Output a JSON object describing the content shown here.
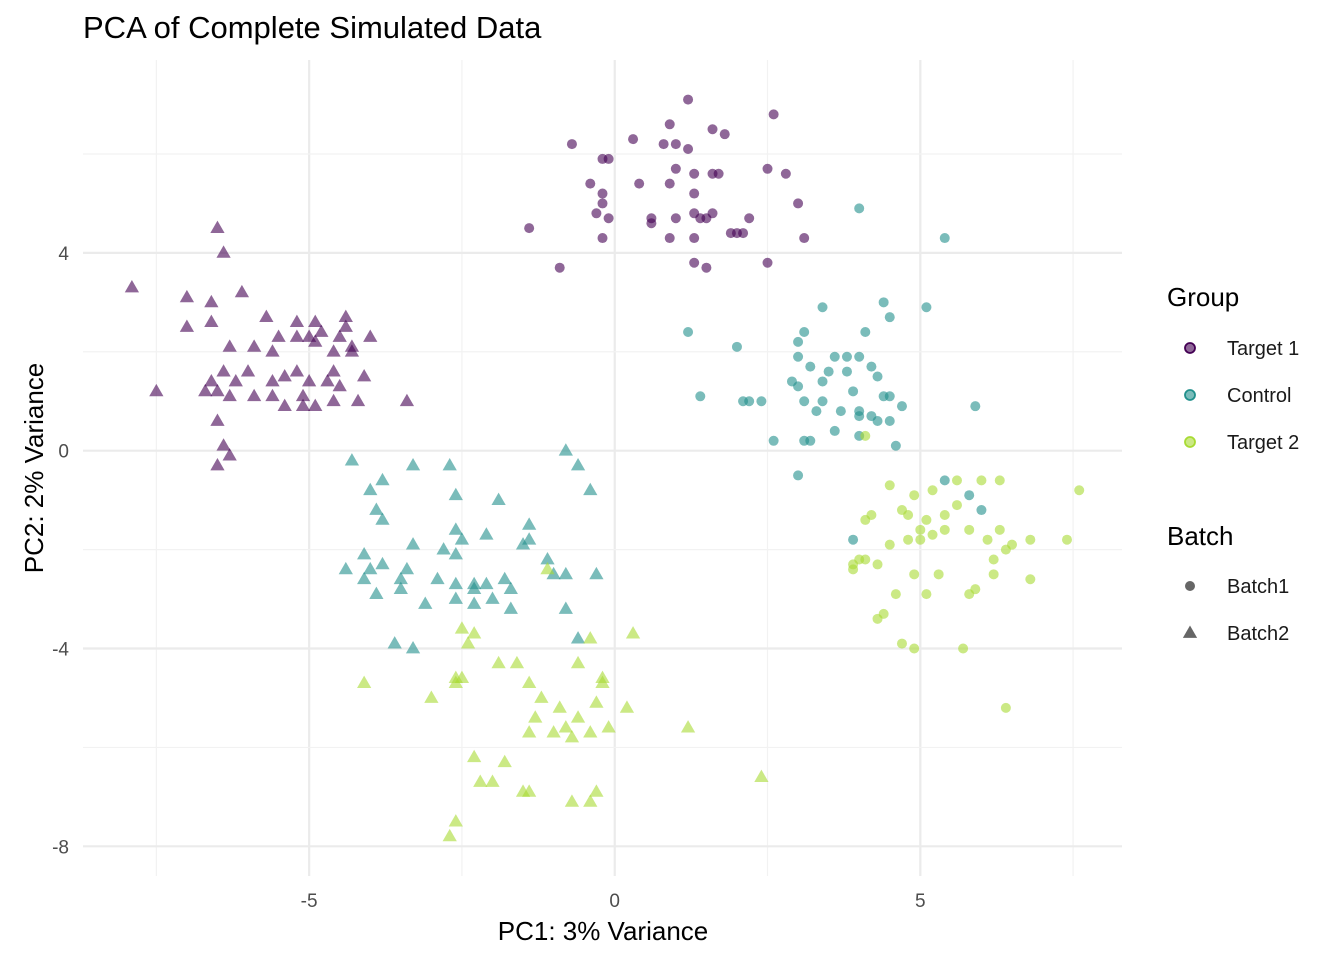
{
  "chart_data": {
    "type": "scatter",
    "title": "PCA of Complete Simulated Data",
    "xlabel": "PC1: 3% Variance",
    "ylabel": "PC2: 2% Variance",
    "xlim": [
      -8.7,
      8.3
    ],
    "ylim": [
      -8.6,
      7.9
    ],
    "x_ticks": [
      -5,
      0,
      5
    ],
    "x_tick_labels": [
      "-5",
      "0",
      "5"
    ],
    "y_ticks": [
      -8,
      -4,
      0,
      4
    ],
    "y_tick_labels": [
      "-8",
      "-4",
      "0",
      "4"
    ],
    "grid": true,
    "legend_position": "right",
    "legend": {
      "color_title": "Group",
      "shape_title": "Batch",
      "groups": [
        {
          "name": "Target 1",
          "color": "#440154"
        },
        {
          "name": "Control",
          "color": "#21908C"
        },
        {
          "name": "Target 2",
          "color": "#A8DB34"
        }
      ],
      "batches": [
        {
          "name": "Batch1",
          "shape": "circle"
        },
        {
          "name": "Batch2",
          "shape": "triangle"
        }
      ]
    },
    "series": [
      {
        "group": "Target 1",
        "batch": "Batch1",
        "points": [
          [
            1.2,
            7.1
          ],
          [
            2.6,
            6.8
          ],
          [
            -0.7,
            6.2
          ],
          [
            0.3,
            6.3
          ],
          [
            0.9,
            6.6
          ],
          [
            1.6,
            6.5
          ],
          [
            1.8,
            6.4
          ],
          [
            1.0,
            6.2
          ],
          [
            0.8,
            6.2
          ],
          [
            1.2,
            6.1
          ],
          [
            -0.2,
            5.9
          ],
          [
            -0.1,
            5.9
          ],
          [
            1.0,
            5.7
          ],
          [
            1.3,
            5.6
          ],
          [
            1.6,
            5.6
          ],
          [
            1.7,
            5.6
          ],
          [
            2.5,
            5.7
          ],
          [
            2.8,
            5.6
          ],
          [
            -0.4,
            5.4
          ],
          [
            0.4,
            5.4
          ],
          [
            0.9,
            5.4
          ],
          [
            -0.2,
            5.2
          ],
          [
            -0.2,
            5.0
          ],
          [
            1.3,
            5.2
          ],
          [
            3.0,
            5.0
          ],
          [
            -0.3,
            4.8
          ],
          [
            0.6,
            4.7
          ],
          [
            1.0,
            4.7
          ],
          [
            1.3,
            4.8
          ],
          [
            1.5,
            4.7
          ],
          [
            1.6,
            4.8
          ],
          [
            2.2,
            4.7
          ],
          [
            -0.1,
            4.7
          ],
          [
            0.6,
            4.6
          ],
          [
            1.4,
            4.7
          ],
          [
            2.0,
            4.4
          ],
          [
            2.1,
            4.4
          ],
          [
            1.9,
            4.4
          ],
          [
            -1.4,
            4.5
          ],
          [
            -0.2,
            4.3
          ],
          [
            0.9,
            4.3
          ],
          [
            1.3,
            4.3
          ],
          [
            3.1,
            4.3
          ],
          [
            1.3,
            3.8
          ],
          [
            1.5,
            3.7
          ],
          [
            2.5,
            3.8
          ],
          [
            -0.9,
            3.7
          ]
        ]
      },
      {
        "group": "Target 1",
        "batch": "Batch2",
        "points": [
          [
            -6.5,
            4.5
          ],
          [
            -6.4,
            4.0
          ],
          [
            -7.9,
            3.3
          ],
          [
            -7.0,
            3.1
          ],
          [
            -6.1,
            3.2
          ],
          [
            -6.6,
            3.0
          ],
          [
            -7.0,
            2.5
          ],
          [
            -6.6,
            2.6
          ],
          [
            -5.7,
            2.7
          ],
          [
            -5.2,
            2.6
          ],
          [
            -4.9,
            2.6
          ],
          [
            -4.4,
            2.7
          ],
          [
            -6.3,
            2.1
          ],
          [
            -5.9,
            2.1
          ],
          [
            -5.5,
            2.3
          ],
          [
            -5.2,
            2.3
          ],
          [
            -5.0,
            2.3
          ],
          [
            -4.8,
            2.4
          ],
          [
            -4.5,
            2.3
          ],
          [
            -4.4,
            2.5
          ],
          [
            -4.0,
            2.3
          ],
          [
            -5.6,
            2.0
          ],
          [
            -4.9,
            2.2
          ],
          [
            -4.6,
            2.0
          ],
          [
            -4.3,
            2.1
          ],
          [
            -4.3,
            2.0
          ],
          [
            -6.4,
            1.6
          ],
          [
            -6.0,
            1.6
          ],
          [
            -5.2,
            1.6
          ],
          [
            -4.6,
            1.6
          ],
          [
            -6.6,
            1.4
          ],
          [
            -6.2,
            1.4
          ],
          [
            -5.6,
            1.4
          ],
          [
            -5.4,
            1.5
          ],
          [
            -5.0,
            1.4
          ],
          [
            -4.7,
            1.4
          ],
          [
            -4.5,
            1.3
          ],
          [
            -4.1,
            1.5
          ],
          [
            -6.7,
            1.2
          ],
          [
            -6.5,
            1.2
          ],
          [
            -6.3,
            1.1
          ],
          [
            -5.9,
            1.1
          ],
          [
            -5.6,
            1.1
          ],
          [
            -5.4,
            0.9
          ],
          [
            -5.1,
            0.9
          ],
          [
            -4.9,
            0.9
          ],
          [
            -5.1,
            1.1
          ],
          [
            -4.6,
            1.0
          ],
          [
            -4.2,
            1.0
          ],
          [
            -3.4,
            1.0
          ],
          [
            -7.5,
            1.2
          ],
          [
            -6.5,
            0.6
          ],
          [
            -6.4,
            0.1
          ],
          [
            -6.5,
            -0.3
          ],
          [
            -6.3,
            -0.1
          ]
        ]
      },
      {
        "group": "Control",
        "batch": "Batch1",
        "points": [
          [
            4.0,
            4.9
          ],
          [
            5.4,
            4.3
          ],
          [
            1.2,
            2.4
          ],
          [
            3.4,
            2.9
          ],
          [
            4.4,
            3.0
          ],
          [
            5.1,
            2.9
          ],
          [
            4.5,
            2.7
          ],
          [
            3.1,
            2.4
          ],
          [
            3.0,
            2.2
          ],
          [
            4.1,
            2.4
          ],
          [
            2.0,
            2.1
          ],
          [
            3.6,
            1.9
          ],
          [
            3.8,
            1.9
          ],
          [
            3.0,
            1.9
          ],
          [
            4.0,
            1.9
          ],
          [
            4.2,
            1.7
          ],
          [
            3.2,
            1.7
          ],
          [
            3.5,
            1.6
          ],
          [
            3.8,
            1.6
          ],
          [
            4.3,
            1.5
          ],
          [
            2.9,
            1.4
          ],
          [
            3.4,
            1.4
          ],
          [
            3.0,
            1.3
          ],
          [
            3.9,
            1.2
          ],
          [
            1.4,
            1.1
          ],
          [
            2.2,
            1.0
          ],
          [
            2.1,
            1.0
          ],
          [
            2.4,
            1.0
          ],
          [
            3.1,
            1.0
          ],
          [
            3.4,
            1.0
          ],
          [
            4.4,
            1.1
          ],
          [
            4.5,
            1.1
          ],
          [
            3.3,
            0.8
          ],
          [
            3.7,
            0.8
          ],
          [
            4.0,
            0.8
          ],
          [
            4.0,
            0.7
          ],
          [
            4.2,
            0.7
          ],
          [
            4.3,
            0.6
          ],
          [
            4.5,
            0.6
          ],
          [
            4.7,
            0.9
          ],
          [
            5.9,
            0.9
          ],
          [
            2.6,
            0.2
          ],
          [
            3.1,
            0.2
          ],
          [
            3.2,
            0.2
          ],
          [
            3.6,
            0.4
          ],
          [
            4.0,
            0.3
          ],
          [
            4.6,
            0.1
          ],
          [
            3.0,
            -0.5
          ],
          [
            5.4,
            -0.6
          ],
          [
            5.8,
            -0.9
          ],
          [
            6.0,
            -1.2
          ],
          [
            3.9,
            -1.8
          ]
        ]
      },
      {
        "group": "Control",
        "batch": "Batch2",
        "points": [
          [
            -0.8,
            0.0
          ],
          [
            -4.3,
            -0.2
          ],
          [
            -3.3,
            -0.3
          ],
          [
            -2.7,
            -0.3
          ],
          [
            -0.6,
            -0.3
          ],
          [
            -3.8,
            -0.6
          ],
          [
            -4.0,
            -0.8
          ],
          [
            -2.6,
            -0.9
          ],
          [
            -0.4,
            -0.8
          ],
          [
            -3.9,
            -1.2
          ],
          [
            -1.9,
            -1.0
          ],
          [
            -2.6,
            -1.6
          ],
          [
            -3.8,
            -1.4
          ],
          [
            -2.1,
            -1.7
          ],
          [
            -1.4,
            -1.5
          ],
          [
            -1.5,
            -1.9
          ],
          [
            -3.3,
            -1.9
          ],
          [
            -2.8,
            -2.0
          ],
          [
            -2.5,
            -1.8
          ],
          [
            -2.6,
            -2.1
          ],
          [
            -1.4,
            -1.8
          ],
          [
            -4.1,
            -2.1
          ],
          [
            -3.8,
            -2.3
          ],
          [
            -3.4,
            -2.4
          ],
          [
            -1.1,
            -2.2
          ],
          [
            -1.0,
            -2.5
          ],
          [
            -0.8,
            -2.5
          ],
          [
            -0.3,
            -2.5
          ],
          [
            -4.1,
            -2.6
          ],
          [
            -3.5,
            -2.6
          ],
          [
            -2.9,
            -2.6
          ],
          [
            -2.3,
            -2.7
          ],
          [
            -2.1,
            -2.7
          ],
          [
            -1.8,
            -2.6
          ],
          [
            -4.4,
            -2.4
          ],
          [
            -4.0,
            -2.4
          ],
          [
            -3.9,
            -2.9
          ],
          [
            -3.5,
            -2.8
          ],
          [
            -2.6,
            -2.7
          ],
          [
            -2.3,
            -2.8
          ],
          [
            -1.7,
            -2.8
          ],
          [
            -2.6,
            -3.0
          ],
          [
            -2.0,
            -3.0
          ],
          [
            -3.1,
            -3.1
          ],
          [
            -2.3,
            -3.1
          ],
          [
            -1.7,
            -3.2
          ],
          [
            -0.8,
            -3.2
          ],
          [
            -3.6,
            -3.9
          ],
          [
            -3.3,
            -4.0
          ],
          [
            -0.6,
            -3.8
          ]
        ]
      },
      {
        "group": "Target 2",
        "batch": "Batch1",
        "points": [
          [
            4.1,
            0.3
          ],
          [
            6.3,
            -0.6
          ],
          [
            7.6,
            -0.8
          ],
          [
            4.5,
            -0.7
          ],
          [
            5.6,
            -0.6
          ],
          [
            6.0,
            -0.6
          ],
          [
            4.9,
            -0.9
          ],
          [
            5.2,
            -0.8
          ],
          [
            5.6,
            -1.1
          ],
          [
            5.4,
            -1.3
          ],
          [
            4.2,
            -1.3
          ],
          [
            4.1,
            -1.4
          ],
          [
            4.7,
            -1.2
          ],
          [
            4.8,
            -1.3
          ],
          [
            5.1,
            -1.4
          ],
          [
            5.0,
            -1.6
          ],
          [
            5.4,
            -1.6
          ],
          [
            5.8,
            -1.6
          ],
          [
            6.3,
            -1.6
          ],
          [
            6.1,
            -1.8
          ],
          [
            4.5,
            -1.9
          ],
          [
            4.8,
            -1.8
          ],
          [
            5.0,
            -1.8
          ],
          [
            5.2,
            -1.7
          ],
          [
            6.5,
            -1.9
          ],
          [
            6.8,
            -1.8
          ],
          [
            7.4,
            -1.8
          ],
          [
            6.4,
            -2.0
          ],
          [
            6.2,
            -2.2
          ],
          [
            4.0,
            -2.2
          ],
          [
            4.3,
            -2.3
          ],
          [
            4.1,
            -2.2
          ],
          [
            3.9,
            -2.3
          ],
          [
            3.9,
            -2.4
          ],
          [
            6.2,
            -2.5
          ],
          [
            4.9,
            -2.5
          ],
          [
            5.3,
            -2.5
          ],
          [
            6.8,
            -2.6
          ],
          [
            5.1,
            -2.9
          ],
          [
            4.6,
            -2.9
          ],
          [
            5.9,
            -2.8
          ],
          [
            5.8,
            -2.9
          ],
          [
            4.4,
            -3.3
          ],
          [
            4.3,
            -3.4
          ],
          [
            4.7,
            -3.9
          ],
          [
            4.9,
            -4.0
          ],
          [
            5.7,
            -4.0
          ],
          [
            6.4,
            -5.2
          ]
        ]
      },
      {
        "group": "Target 2",
        "batch": "Batch2",
        "points": [
          [
            -1.1,
            -2.4
          ],
          [
            -2.5,
            -3.6
          ],
          [
            -2.4,
            -3.9
          ],
          [
            -2.3,
            -3.7
          ],
          [
            0.3,
            -3.7
          ],
          [
            -0.4,
            -3.8
          ],
          [
            -2.6,
            -4.6
          ],
          [
            -2.5,
            -4.6
          ],
          [
            -1.6,
            -4.3
          ],
          [
            -1.9,
            -4.3
          ],
          [
            -0.6,
            -4.3
          ],
          [
            -0.2,
            -4.6
          ],
          [
            -1.4,
            -4.7
          ],
          [
            -0.2,
            -4.7
          ],
          [
            -4.1,
            -4.7
          ],
          [
            -2.6,
            -4.7
          ],
          [
            -3.0,
            -5.0
          ],
          [
            -1.2,
            -5.0
          ],
          [
            -0.9,
            -5.2
          ],
          [
            -0.3,
            -5.1
          ],
          [
            0.2,
            -5.2
          ],
          [
            1.2,
            -5.6
          ],
          [
            -0.8,
            -5.6
          ],
          [
            -1.3,
            -5.4
          ],
          [
            -0.6,
            -5.4
          ],
          [
            -1.4,
            -5.7
          ],
          [
            -1.0,
            -5.7
          ],
          [
            -0.7,
            -5.8
          ],
          [
            -0.4,
            -5.7
          ],
          [
            -0.1,
            -5.6
          ],
          [
            -2.3,
            -6.2
          ],
          [
            -1.8,
            -6.3
          ],
          [
            -2.2,
            -6.7
          ],
          [
            -2.0,
            -6.7
          ],
          [
            -1.5,
            -6.9
          ],
          [
            -1.4,
            -6.9
          ],
          [
            -0.7,
            -7.1
          ],
          [
            -0.3,
            -6.9
          ],
          [
            -0.4,
            -7.1
          ],
          [
            2.4,
            -6.6
          ],
          [
            -2.6,
            -7.5
          ],
          [
            -2.7,
            -7.8
          ]
        ]
      }
    ]
  }
}
